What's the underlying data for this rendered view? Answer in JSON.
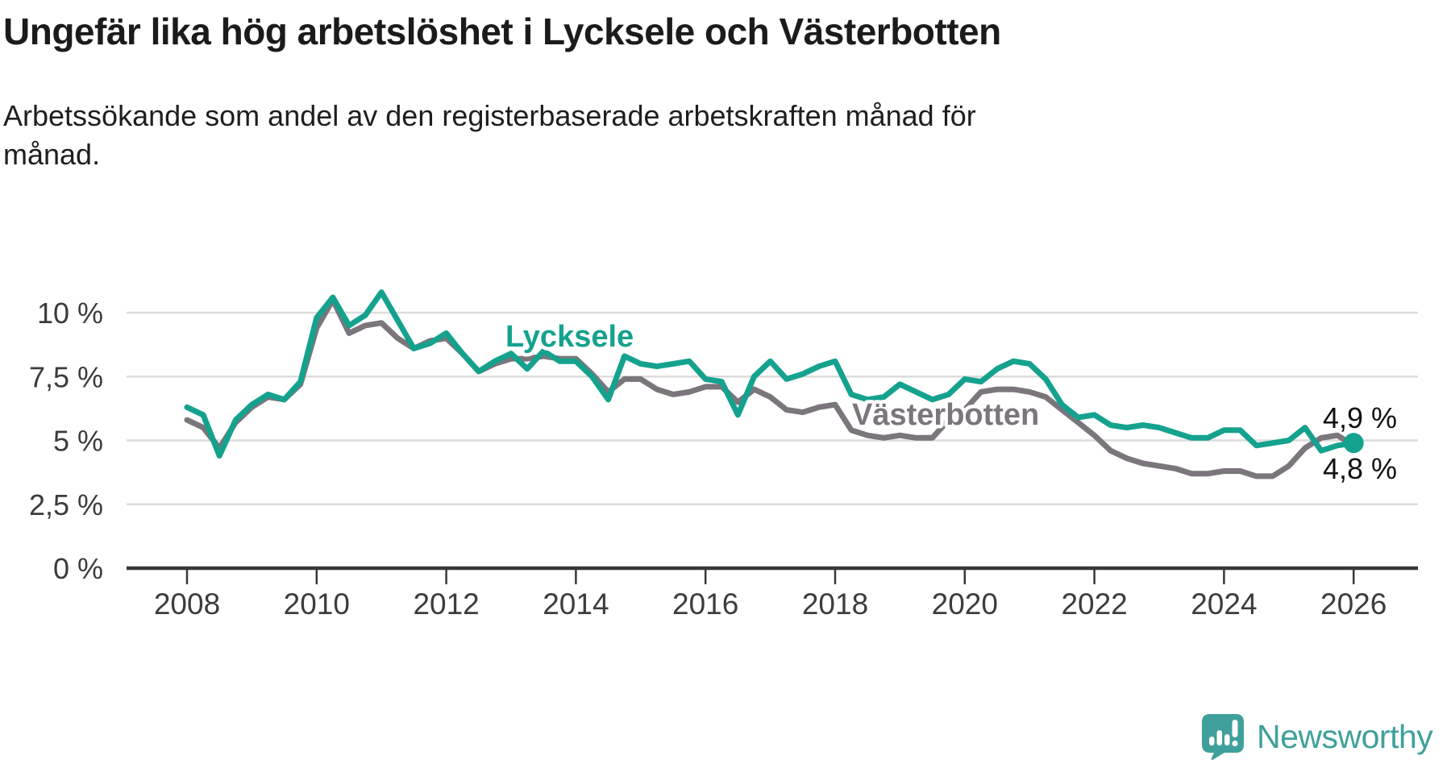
{
  "header": {
    "title": "Ungefär lika hög arbetslöshet i Lycksele och Västerbotten",
    "subtitle_lines": [
      "Arbetssökande som andel av den registerbaserade arbetskraften månad för",
      "månad."
    ]
  },
  "chart_data": {
    "type": "line",
    "title": "Ungefär lika hög arbetslöshet i Lycksele och Västerbotten",
    "subtitle": "Arbetssökande som andel av den registerbaserade arbetskraften månad för månad.",
    "y_unit": "%",
    "ylim": [
      0,
      11
    ],
    "xlim": [
      2007.1,
      2027.0
    ],
    "grid": true,
    "x_ticks": [
      2008,
      2010,
      2012,
      2014,
      2016,
      2018,
      2020,
      2022,
      2024,
      2026
    ],
    "y_ticks": [
      {
        "value": 10,
        "label": "10 %"
      },
      {
        "value": 7.5,
        "label": "7,5 %"
      },
      {
        "value": 5,
        "label": "5 %"
      },
      {
        "value": 2.5,
        "label": "2,5 %"
      },
      {
        "value": 0,
        "label": "0 %"
      }
    ],
    "x": [
      2008,
      2008.25,
      2008.5,
      2008.75,
      2009,
      2009.25,
      2009.5,
      2009.75,
      2010,
      2010.25,
      2010.5,
      2010.75,
      2011,
      2011.25,
      2011.5,
      2011.75,
      2012,
      2012.25,
      2012.5,
      2012.75,
      2013,
      2013.25,
      2013.5,
      2013.75,
      2014,
      2014.25,
      2014.5,
      2014.75,
      2015,
      2015.25,
      2015.5,
      2015.75,
      2016,
      2016.25,
      2016.5,
      2016.75,
      2017,
      2017.25,
      2017.5,
      2017.75,
      2018,
      2018.25,
      2018.5,
      2018.75,
      2019,
      2019.25,
      2019.5,
      2019.75,
      2020,
      2020.25,
      2020.5,
      2020.75,
      2021,
      2021.25,
      2021.5,
      2021.75,
      2022,
      2022.25,
      2022.5,
      2022.75,
      2023,
      2023.25,
      2023.5,
      2023.75,
      2024,
      2024.25,
      2024.5,
      2024.75,
      2025,
      2025.25,
      2025.5,
      2025.75,
      2026
    ],
    "series": [
      {
        "name": "Västerbotten",
        "color": "#7b757c",
        "values": [
          5.8,
          5.5,
          4.7,
          5.7,
          6.3,
          6.7,
          6.6,
          7.2,
          9.4,
          10.5,
          9.2,
          9.5,
          9.6,
          9.0,
          8.6,
          8.9,
          9.0,
          8.4,
          7.7,
          8.0,
          8.2,
          8.2,
          8.3,
          8.2,
          8.2,
          7.6,
          6.9,
          7.4,
          7.4,
          7.0,
          6.8,
          6.9,
          7.1,
          7.1,
          6.5,
          7.0,
          6.7,
          6.2,
          6.1,
          6.3,
          6.4,
          5.4,
          5.2,
          5.1,
          5.2,
          5.1,
          5.1,
          5.8,
          6.2,
          6.9,
          7.0,
          7.0,
          6.9,
          6.7,
          6.2,
          5.7,
          5.2,
          4.6,
          4.3,
          4.1,
          4.0,
          3.9,
          3.7,
          3.7,
          3.8,
          3.8,
          3.6,
          3.6,
          4.0,
          4.7,
          5.1,
          5.2,
          4.8
        ],
        "last_value_label": "4,8 %"
      },
      {
        "name": "Lycksele",
        "color": "#14a28e",
        "values": [
          6.3,
          6.0,
          4.4,
          5.8,
          6.4,
          6.8,
          6.6,
          7.3,
          9.8,
          10.6,
          9.5,
          9.9,
          10.8,
          9.7,
          8.6,
          8.8,
          9.2,
          8.4,
          7.7,
          8.1,
          8.4,
          7.8,
          8.5,
          8.1,
          8.1,
          7.5,
          6.6,
          8.3,
          8.0,
          7.9,
          8.0,
          8.1,
          7.4,
          7.3,
          6.0,
          7.5,
          8.1,
          7.4,
          7.6,
          7.9,
          8.1,
          6.8,
          6.6,
          6.7,
          7.2,
          6.9,
          6.6,
          6.8,
          7.4,
          7.3,
          7.8,
          8.1,
          8.0,
          7.4,
          6.4,
          5.9,
          6.0,
          5.6,
          5.5,
          5.6,
          5.5,
          5.3,
          5.1,
          5.1,
          5.4,
          5.4,
          4.8,
          4.9,
          5.0,
          5.5,
          4.6,
          4.8,
          4.9
        ],
        "endpoint_dot": true,
        "last_value_label": "4,9 %"
      }
    ],
    "end_labels": [
      {
        "series": "Lycksele",
        "text": "4,9 %"
      },
      {
        "series": "Västerbotten",
        "text": "4,8 %"
      }
    ]
  },
  "branding": {
    "logo_name": "newsworthy-logo",
    "logo_text": "Newsworthy",
    "logo_color": "#3fa09b"
  }
}
